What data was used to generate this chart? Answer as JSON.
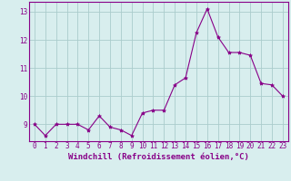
{
  "x": [
    0,
    1,
    2,
    3,
    4,
    5,
    6,
    7,
    8,
    9,
    10,
    11,
    12,
    13,
    14,
    15,
    16,
    17,
    18,
    19,
    20,
    21,
    22,
    23
  ],
  "y": [
    9.0,
    8.6,
    9.0,
    9.0,
    9.0,
    8.8,
    9.3,
    8.9,
    8.8,
    8.6,
    9.4,
    9.5,
    9.5,
    10.4,
    10.65,
    12.25,
    13.1,
    12.1,
    11.55,
    11.55,
    11.45,
    10.45,
    10.4,
    10.0
  ],
  "xlim": [
    -0.5,
    23.5
  ],
  "ylim": [
    8.4,
    13.35
  ],
  "yticks": [
    9,
    10,
    11,
    12,
    13
  ],
  "xticks": [
    0,
    1,
    2,
    3,
    4,
    5,
    6,
    7,
    8,
    9,
    10,
    11,
    12,
    13,
    14,
    15,
    16,
    17,
    18,
    19,
    20,
    21,
    22,
    23
  ],
  "line_color": "#880088",
  "marker": "*",
  "marker_size": 3,
  "background_color": "#d8eeee",
  "grid_color": "#aacccc",
  "xlabel": "Windchill (Refroidissement éolien,°C)",
  "tick_fontsize": 5.5,
  "label_fontsize": 6.5
}
